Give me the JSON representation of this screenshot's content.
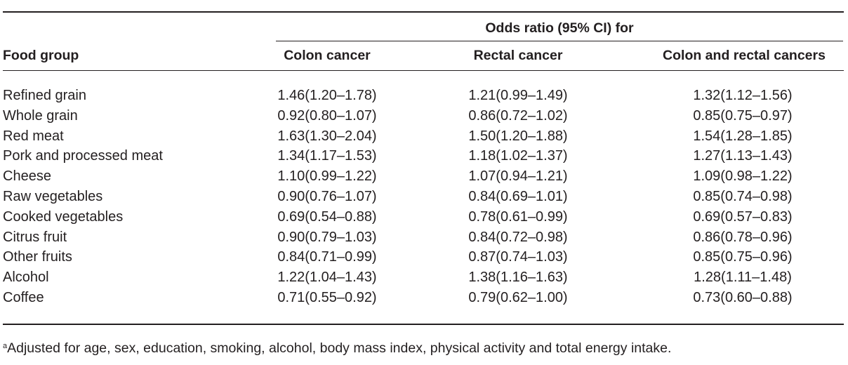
{
  "table": {
    "span_header": "Odds ratio (95% CI) for",
    "columns": [
      "Food group",
      "Colon cancer",
      "Rectal cancer",
      "Colon and rectal cancers"
    ],
    "rows": [
      {
        "food": "Refined grain",
        "colon": "1.46(1.20–1.78)",
        "rectal": "1.21(0.99–1.49)",
        "both": "1.32(1.12–1.56)"
      },
      {
        "food": "Whole grain",
        "colon": "0.92(0.80–1.07)",
        "rectal": "0.86(0.72–1.02)",
        "both": "0.85(0.75–0.97)"
      },
      {
        "food": "Red meat",
        "colon": "1.63(1.30–2.04)",
        "rectal": "1.50(1.20–1.88)",
        "both": "1.54(1.28–1.85)"
      },
      {
        "food": "Pork and processed meat",
        "colon": "1.34(1.17–1.53)",
        "rectal": "1.18(1.02–1.37)",
        "both": "1.27(1.13–1.43)"
      },
      {
        "food": "Cheese",
        "colon": "1.10(0.99–1.22)",
        "rectal": "1.07(0.94–1.21)",
        "both": "1.09(0.98–1.22)"
      },
      {
        "food": "Raw vegetables",
        "colon": "0.90(0.76–1.07)",
        "rectal": "0.84(0.69–1.01)",
        "both": "0.85(0.74–0.98)"
      },
      {
        "food": "Cooked vegetables",
        "colon": "0.69(0.54–0.88)",
        "rectal": "0.78(0.61–0.99)",
        "both": "0.69(0.57–0.83)"
      },
      {
        "food": "Citrus fruit",
        "colon": "0.90(0.79–1.03)",
        "rectal": "0.84(0.72–0.98)",
        "both": "0.86(0.78–0.96)"
      },
      {
        "food": "Other fruits",
        "colon": "0.84(0.71–0.99)",
        "rectal": "0.87(0.74–1.03)",
        "both": "0.85(0.75–0.96)"
      },
      {
        "food": "Alcohol",
        "colon": "1.22(1.04–1.43)",
        "rectal": "1.38(1.16–1.63)",
        "both": "1.28(1.11–1.48)"
      },
      {
        "food": "Coffee",
        "colon": "0.71(0.55–0.92)",
        "rectal": "0.79(0.62–1.00)",
        "both": "0.73(0.60–0.88)"
      }
    ]
  },
  "footnote": {
    "marker": "a",
    "text": "Adjusted for age, sex, education, smoking, alcohol, body mass index, physical activity and total energy intake."
  }
}
